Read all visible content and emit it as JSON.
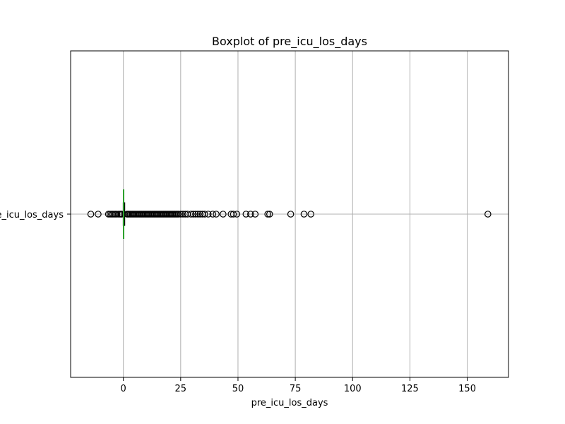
{
  "chart_data": {
    "type": "boxplot",
    "orientation": "horizontal",
    "title": "Boxplot of pre_icu_los_days",
    "xlabel": "pre_icu_los_days",
    "ylabel": "",
    "xlim": [
      -23,
      168
    ],
    "x_ticks": [
      0,
      25,
      50,
      75,
      100,
      125,
      150
    ],
    "categories": [
      "pre_icu_los_days"
    ],
    "grid": true,
    "colors": {
      "box": "#000000",
      "median": "#2ca02c",
      "grid": "#b0b0b0",
      "flier": "#000000"
    },
    "series": [
      {
        "box": {
          "whisker_low": -0.3,
          "q1": -0.05,
          "median": 0.1,
          "q3": 0.6,
          "whisker_high": 1.3
        },
        "fliers": [
          -14.2,
          -11.0,
          -6.5,
          -5.8,
          -5.2,
          -4.6,
          -4.0,
          -3.4,
          -2.8,
          -2.1,
          -1.5,
          -1.0,
          -0.7,
          1.6,
          2.0,
          2.5,
          3.0,
          3.5,
          4.0,
          4.5,
          5.0,
          5.5,
          6.0,
          6.5,
          7.0,
          7.5,
          8.0,
          8.5,
          9.0,
          9.5,
          10.0,
          10.5,
          11.0,
          11.5,
          12.0,
          12.5,
          13.0,
          13.5,
          14.0,
          14.5,
          15.0,
          15.5,
          16.0,
          16.5,
          17.0,
          17.5,
          18.0,
          18.5,
          19.0,
          19.5,
          20.0,
          20.5,
          21.0,
          21.5,
          22.0,
          22.5,
          23.0,
          23.5,
          24.0,
          25.0,
          26.0,
          27.0,
          28.0,
          29.5,
          30.5,
          31.5,
          32.5,
          33.5,
          34.5,
          35.5,
          37.0,
          39.0,
          40.5,
          43.5,
          47.0,
          48.0,
          49.5,
          53.5,
          55.5,
          57.5,
          63.0,
          63.8,
          73.0,
          78.8,
          81.8,
          159.0
        ]
      }
    ]
  }
}
